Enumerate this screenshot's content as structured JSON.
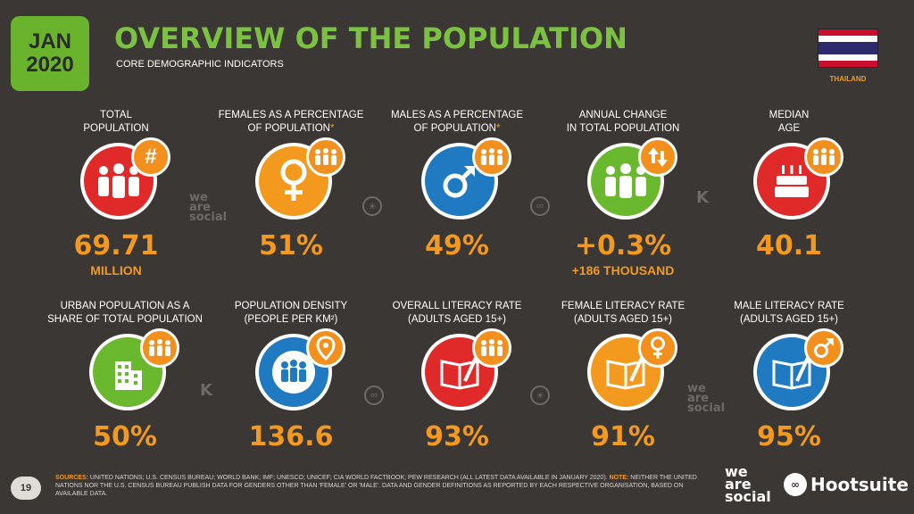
{
  "header": {
    "month": "JAN",
    "year": "2020",
    "title": "OVERVIEW OF THE POPULATION",
    "subtitle": "CORE DEMOGRAPHIC INDICATORS",
    "country": "THAILAND"
  },
  "colors": {
    "accent_green": "#7cc242",
    "accent_orange": "#f39a1e",
    "background": "#3b3735",
    "red": "#e02a2a",
    "orange": "#f39a1e",
    "blue": "#1f7ac1",
    "green": "#6ab82e"
  },
  "row1": [
    {
      "label_l1": "TOTAL",
      "label_l2": "POPULATION",
      "asterisk": "",
      "value": "69.71",
      "unit": "MILLION",
      "color": "#e02a2a",
      "icon": "people-icon",
      "badge": "hash-icon"
    },
    {
      "label_l1": "FEMALES AS A PERCENTAGE",
      "label_l2": "OF POPULATION",
      "asterisk": "*",
      "value": "51%",
      "unit": "",
      "color": "#f39a1e",
      "icon": "female-symbol-icon",
      "badge": "people-icon"
    },
    {
      "label_l1": "MALES AS A PERCENTAGE",
      "label_l2": "OF POPULATION",
      "asterisk": "*",
      "value": "49%",
      "unit": "",
      "color": "#1f7ac1",
      "icon": "male-symbol-icon",
      "badge": "people-icon"
    },
    {
      "label_l1": "ANNUAL CHANGE",
      "label_l2": "IN TOTAL POPULATION",
      "asterisk": "",
      "value": "+0.3%",
      "unit": "+186 THOUSAND",
      "color": "#6ab82e",
      "icon": "people-icon",
      "badge": "up-down-arrows-icon"
    },
    {
      "label_l1": "MEDIAN",
      "label_l2": "AGE",
      "asterisk": "",
      "value": "40.1",
      "unit": "",
      "color": "#e02a2a",
      "icon": "birthday-cake-icon",
      "badge": "people-icon"
    }
  ],
  "row2": [
    {
      "label_l1": "URBAN POPULATION AS A",
      "label_l2": "SHARE OF TOTAL POPULATION",
      "value": "50%",
      "color": "#6ab82e",
      "icon": "building-icon",
      "badge": "people-icon"
    },
    {
      "label_l1": "POPULATION DENSITY",
      "label_l2": "(PEOPLE PER KM²)",
      "value": "136.6",
      "color": "#1f7ac1",
      "icon": "crowd-icon",
      "badge": "location-pin-icon"
    },
    {
      "label_l1": "OVERALL LITERACY RATE",
      "label_l2": "(ADULTS AGED 15+)",
      "value": "93%",
      "color": "#e02a2a",
      "icon": "book-icon",
      "badge": "people-icon"
    },
    {
      "label_l1": "FEMALE LITERACY RATE",
      "label_l2": "(ADULTS AGED 15+)",
      "value": "91%",
      "color": "#f39a1e",
      "icon": "book-icon",
      "badge": "female-symbol-icon"
    },
    {
      "label_l1": "MALE LITERACY RATE",
      "label_l2": "(ADULTS AGED 15+)",
      "value": "95%",
      "color": "#1f7ac1",
      "icon": "book-icon",
      "badge": "male-symbol-icon"
    }
  ],
  "footer": {
    "page": "19",
    "sources_label": "SOURCES:",
    "sources_text": "UNITED NATIONS; U.S. CENSUS BUREAU; WORLD BANK; IMF; UNESCO; UNICEF; CIA WORLD FACTBOOK; PEW RESEARCH (ALL LATEST DATA AVAILABLE IN JANUARY 2020).",
    "note_label": "NOTE:",
    "note_text": "NEITHER THE UNITED NATIONS NOR THE U.S. CENSUS BUREAU PUBLISH DATA FOR GENDERS OTHER THAN 'FEMALE' OR 'MALE'. DATA AND GENDER DEFINITIONS AS REPORTED BY EACH RESPECTIVE ORGANISATION, BASED ON AVAILABLE DATA.",
    "logo_we": "we",
    "logo_are": "are",
    "logo_social": "social",
    "hootsuite": "Hootsuite",
    "kepios": "KEPIOS"
  }
}
